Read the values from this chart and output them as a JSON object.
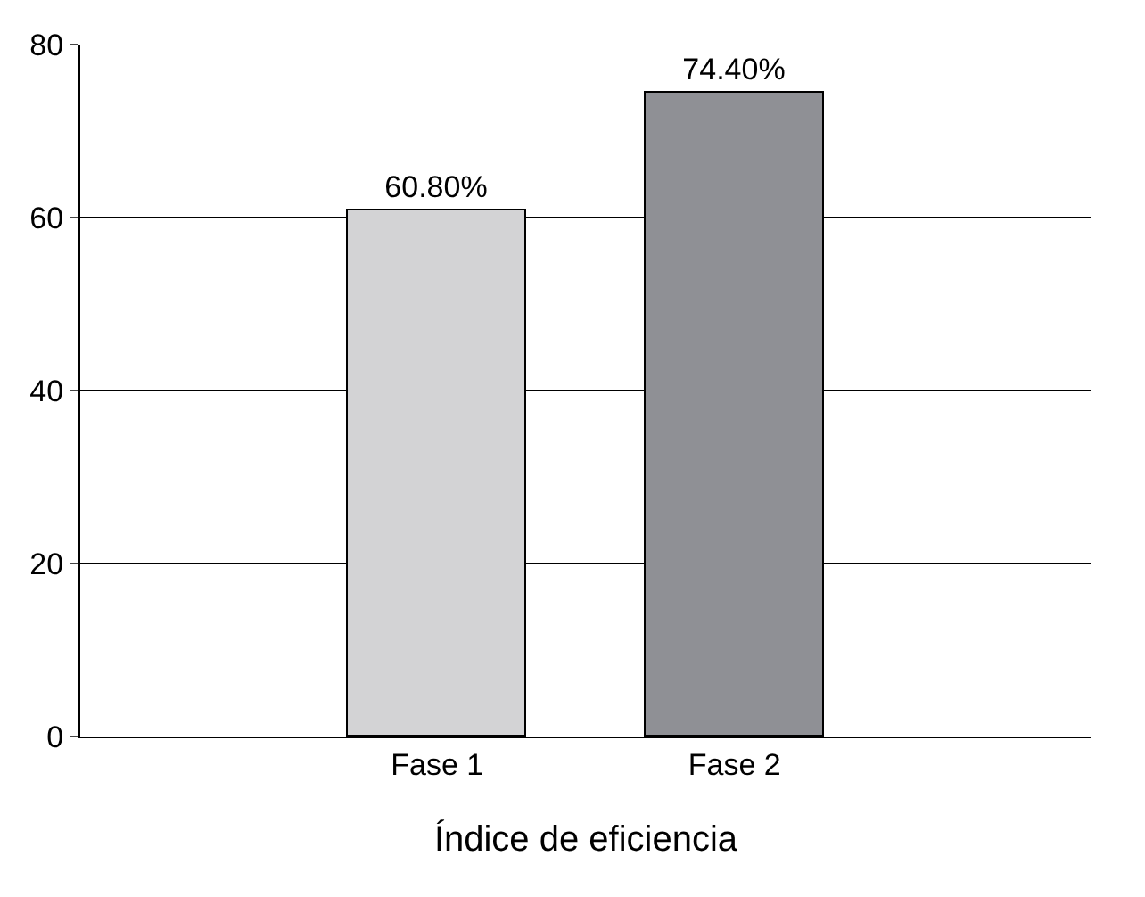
{
  "chart_data": {
    "type": "bar",
    "xlabel": "Índice de eficiencia",
    "categories": [
      "Fase 1",
      "Fase 2"
    ],
    "values": [
      60.8,
      74.4
    ],
    "colors": [
      "#d3d3d5",
      "#8f9095"
    ],
    "value_labels": [
      "60.80%",
      "74.40%"
    ],
    "ylim": [
      0,
      80
    ],
    "yticks": [
      0,
      20,
      40,
      60,
      80
    ],
    "grid": "y"
  }
}
